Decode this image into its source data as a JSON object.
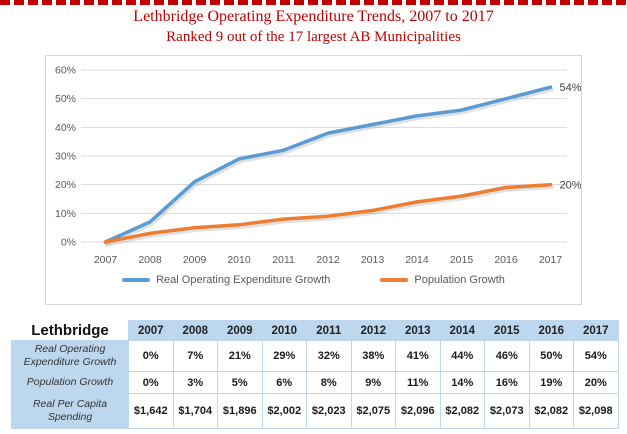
{
  "page": {
    "title": "Lethbridge Operating Expenditure Trends, 2007 to 2017",
    "subtitle": "Ranked 9 out of the 17 largest AB Municipalities",
    "accent_color": "#C00000"
  },
  "chart_data": {
    "type": "line",
    "title": "Lethbridge Operating Expenditure Trends, 2007 to 2017",
    "x": [
      2007,
      2008,
      2009,
      2010,
      2011,
      2012,
      2013,
      2014,
      2015,
      2016,
      2017
    ],
    "series": [
      {
        "name": "Real Operating Expenditure Growth",
        "color": "#5B9BD5",
        "values": [
          0,
          7,
          21,
          29,
          32,
          38,
          41,
          44,
          46,
          50,
          54
        ],
        "end_label": "54%"
      },
      {
        "name": "Population Growth",
        "color": "#ED7D31",
        "values": [
          0,
          3,
          5,
          6,
          8,
          9,
          11,
          14,
          16,
          19,
          20
        ],
        "end_label": "20%"
      }
    ],
    "xlabel": "",
    "ylabel": "",
    "ylim": [
      0,
      60
    ],
    "ytick_labels": [
      "0%",
      "10%",
      "20%",
      "30%",
      "40%",
      "50%",
      "60%"
    ],
    "grid": true,
    "gridline_color": "#D9D9D9",
    "legend_position": "bottom"
  },
  "table": {
    "corner_label": "Lethbridge",
    "years": [
      "2007",
      "2008",
      "2009",
      "2010",
      "2011",
      "2012",
      "2013",
      "2014",
      "2015",
      "2016",
      "2017"
    ],
    "rows": [
      {
        "label": "Real Operating Expenditure Growth",
        "values": [
          "0%",
          "7%",
          "21%",
          "29%",
          "32%",
          "38%",
          "41%",
          "44%",
          "46%",
          "50%",
          "54%"
        ]
      },
      {
        "label": "Population Growth",
        "values": [
          "0%",
          "3%",
          "5%",
          "6%",
          "8%",
          "9%",
          "11%",
          "14%",
          "16%",
          "19%",
          "20%"
        ]
      },
      {
        "label": "Real Per Capita Spending",
        "values": [
          "$1,642",
          "$1,704",
          "$1,896",
          "$2,002",
          "$2,023",
          "$2,075",
          "$2,096",
          "$2,082",
          "$2,073",
          "$2,082",
          "$2,098"
        ]
      }
    ],
    "header_bg": "#BDD7EE",
    "label_bg": "#BDD7EE"
  }
}
